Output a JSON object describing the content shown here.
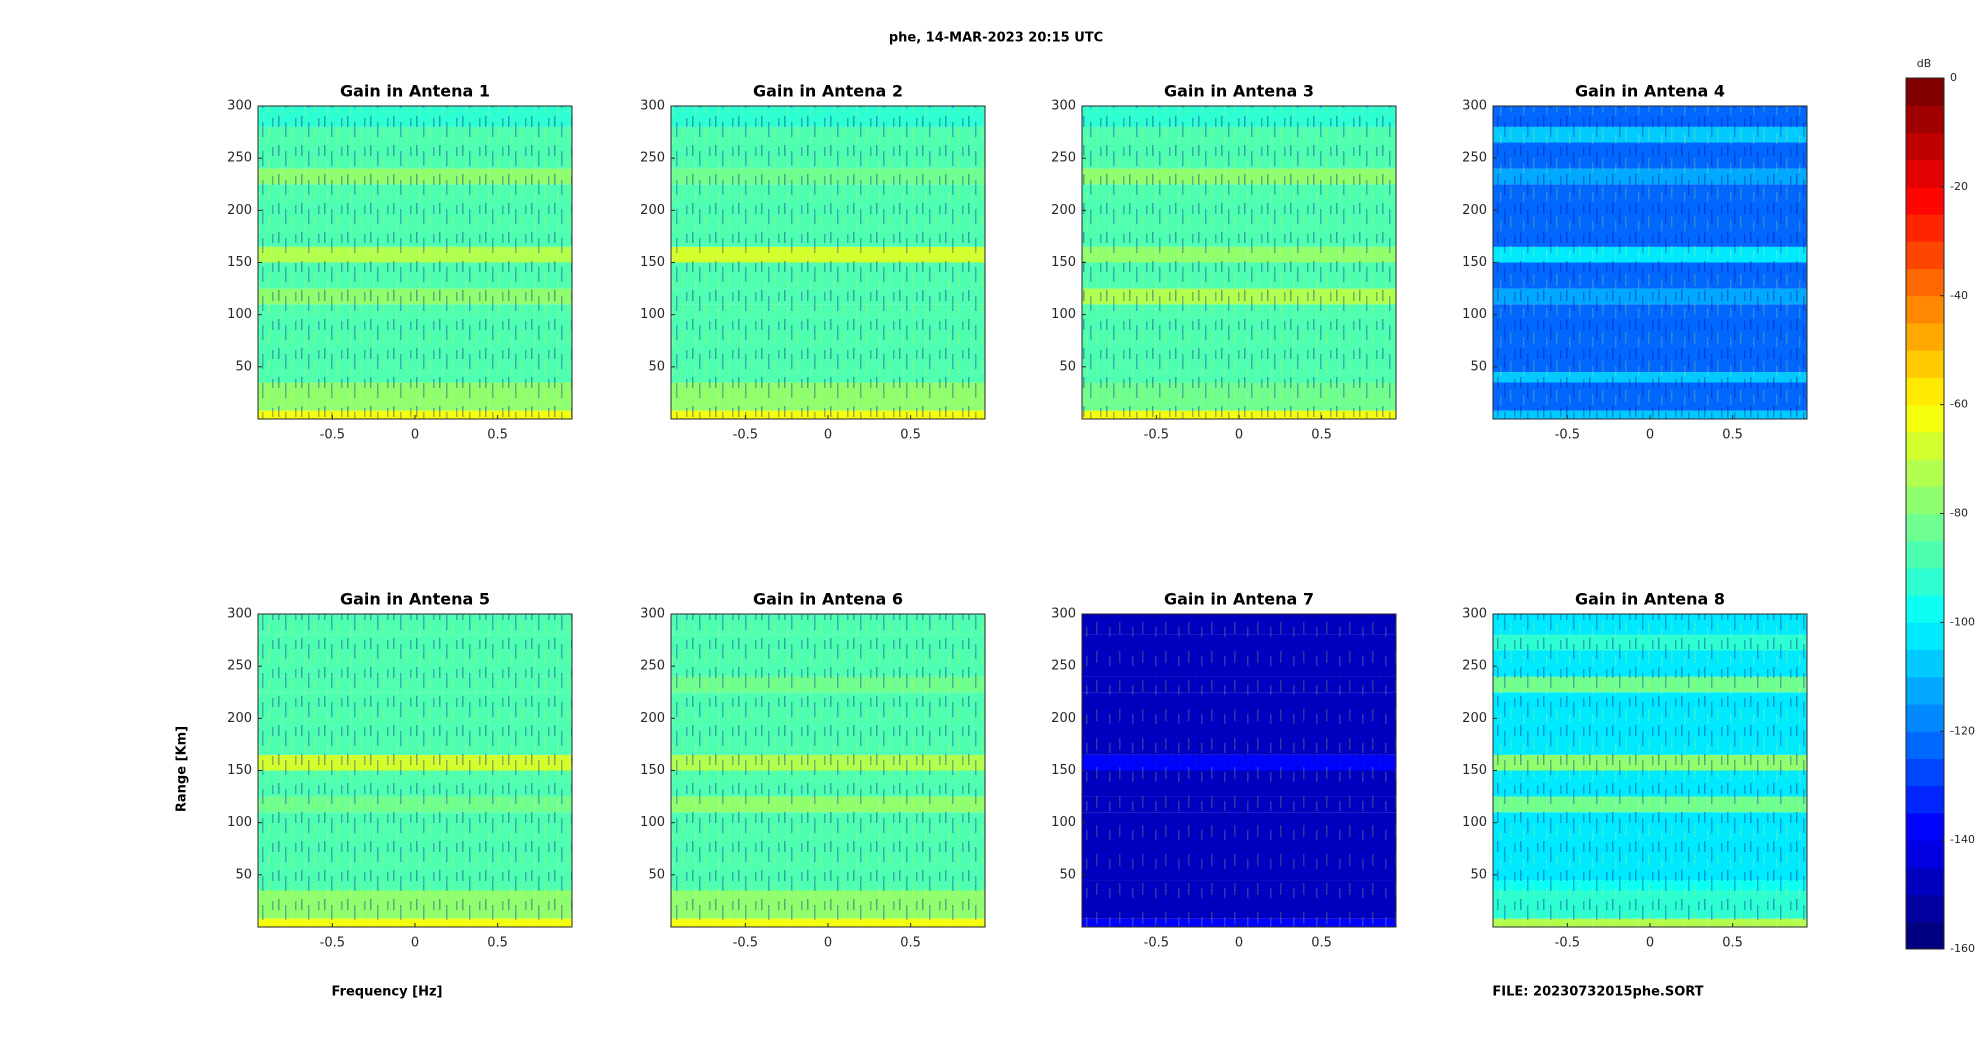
{
  "figure": {
    "title": "phe, 14-MAR-2023 20:15 UTC",
    "xlabel": "Frequency [Hz]",
    "ylabel": "Range [Km]",
    "file": "FILE: 20230732015phe.SORT"
  },
  "axes": {
    "xlim": [
      -0.95,
      0.95
    ],
    "ylim": [
      0,
      300
    ],
    "xticks": [
      -0.5,
      0,
      0.5
    ],
    "yticks": [
      50,
      100,
      150,
      200,
      250,
      300
    ],
    "y_bins": [
      0,
      8,
      35,
      45,
      110,
      125,
      150,
      165,
      225,
      240,
      265,
      280,
      300
    ]
  },
  "colorbar": {
    "label": "dB",
    "lim": [
      -160,
      0
    ],
    "ticks": [
      0,
      -20,
      -40,
      -60,
      -80,
      -100,
      -120,
      -140,
      -160
    ],
    "colormap": "jet"
  },
  "chart_data": [
    {
      "type": "heatmap",
      "title": "Gain in Antena 1",
      "values": [
        -60,
        -80,
        -88,
        -88,
        -75,
        -88,
        -70,
        -90,
        -75,
        -90,
        -88,
        -92
      ]
    },
    {
      "type": "heatmap",
      "title": "Gain in Antena 2",
      "values": [
        -60,
        -80,
        -88,
        -88,
        -88,
        -88,
        -68,
        -90,
        -85,
        -90,
        -88,
        -92
      ]
    },
    {
      "type": "heatmap",
      "title": "Gain in Antena 3",
      "values": [
        -62,
        -82,
        -88,
        -88,
        -72,
        -88,
        -75,
        -90,
        -75,
        -90,
        -88,
        -92
      ]
    },
    {
      "type": "heatmap",
      "title": "Gain in Antena 4",
      "values": [
        -110,
        -125,
        -110,
        -125,
        -112,
        -125,
        -105,
        -125,
        -112,
        -125,
        -110,
        -125
      ]
    },
    {
      "type": "heatmap",
      "title": "Gain in Antena 5",
      "values": [
        -60,
        -80,
        -88,
        -88,
        -85,
        -88,
        -68,
        -90,
        -88,
        -90,
        -88,
        -90
      ]
    },
    {
      "type": "heatmap",
      "title": "Gain in Antena 6",
      "values": [
        -60,
        -80,
        -88,
        -88,
        -78,
        -88,
        -70,
        -90,
        -82,
        -90,
        -88,
        -90
      ]
    },
    {
      "type": "heatmap",
      "title": "Gain in Antena 7",
      "values": [
        -140,
        -150,
        -150,
        -150,
        -150,
        -150,
        -138,
        -150,
        -150,
        -150,
        -150,
        -150
      ]
    },
    {
      "type": "heatmap",
      "title": "Gain in Antena 8",
      "values": [
        -70,
        -95,
        -100,
        -105,
        -82,
        -105,
        -80,
        -105,
        -85,
        -105,
        -95,
        -105
      ]
    }
  ]
}
